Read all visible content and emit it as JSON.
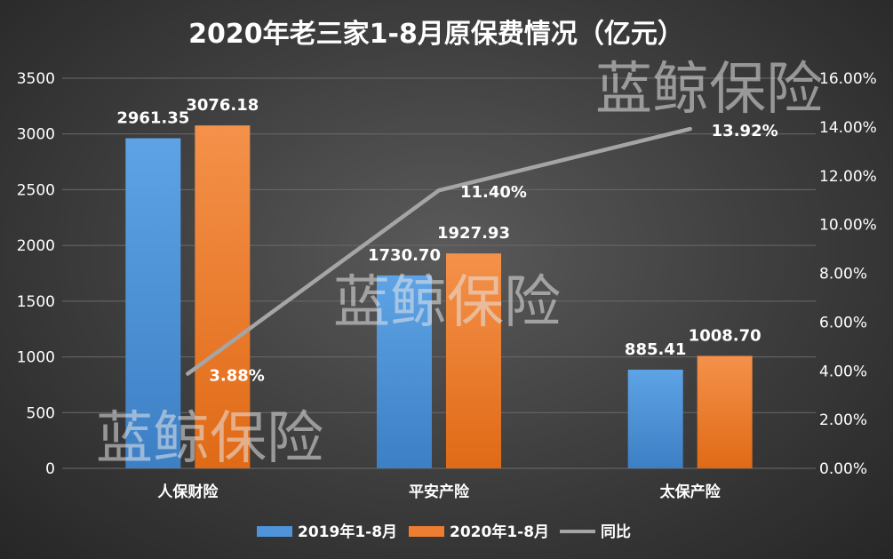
{
  "chart_data": {
    "type": "bar",
    "title": "2020年老三家1-8月原保费情况（亿元）",
    "categories": [
      "人保财险",
      "平安产险",
      "太保产险"
    ],
    "series": [
      {
        "name": "2019年1-8月",
        "kind": "bar",
        "color": "#4f94d9",
        "values": [
          2961.35,
          1730.7,
          885.41
        ],
        "labels": [
          "2961.35",
          "1730.70",
          "885.41"
        ]
      },
      {
        "name": "2020年1-8月",
        "kind": "bar",
        "color": "#ed7d31",
        "values": [
          3076.18,
          1927.93,
          1008.7
        ],
        "labels": [
          "3076.18",
          "1927.93",
          "1008.70"
        ]
      },
      {
        "name": "同比",
        "kind": "line",
        "axis": "right",
        "color": "#a5a5a5",
        "values": [
          3.88,
          11.4,
          13.92
        ],
        "labels": [
          "3.88%",
          "11.40%",
          "13.92%"
        ]
      }
    ],
    "ylim": [
      0,
      3500
    ],
    "yticks": [
      "0",
      "500",
      "1000",
      "1500",
      "2000",
      "2500",
      "3000",
      "3500"
    ],
    "y2lim": [
      0,
      16
    ],
    "y2ticks": [
      "0.00%",
      "2.00%",
      "4.00%",
      "6.00%",
      "8.00%",
      "10.00%",
      "12.00%",
      "14.00%",
      "16.00%"
    ],
    "legend_position": "bottom",
    "grid": true
  },
  "watermarks": [
    "蓝鲸保险",
    "蓝鲸保险",
    "蓝鲸保险"
  ]
}
